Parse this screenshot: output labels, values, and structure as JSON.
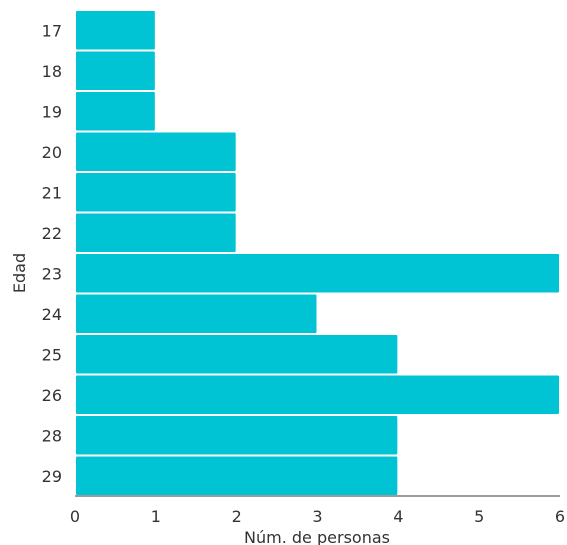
{
  "chart_data": {
    "type": "bar",
    "orientation": "horizontal",
    "categories": [
      "17",
      "18",
      "19",
      "20",
      "21",
      "22",
      "23",
      "24",
      "25",
      "26",
      "28",
      "29"
    ],
    "values": [
      1,
      1,
      1,
      2,
      2,
      2,
      6,
      3,
      4,
      6,
      4,
      4
    ],
    "xlabel": "Núm. de personas",
    "ylabel": "Edad",
    "xlim": [
      0,
      6
    ],
    "xticks": [
      "0",
      "1",
      "2",
      "3",
      "4",
      "5",
      "6"
    ],
    "grid": false,
    "legend": "none",
    "bar_color": "#00c3d3"
  }
}
